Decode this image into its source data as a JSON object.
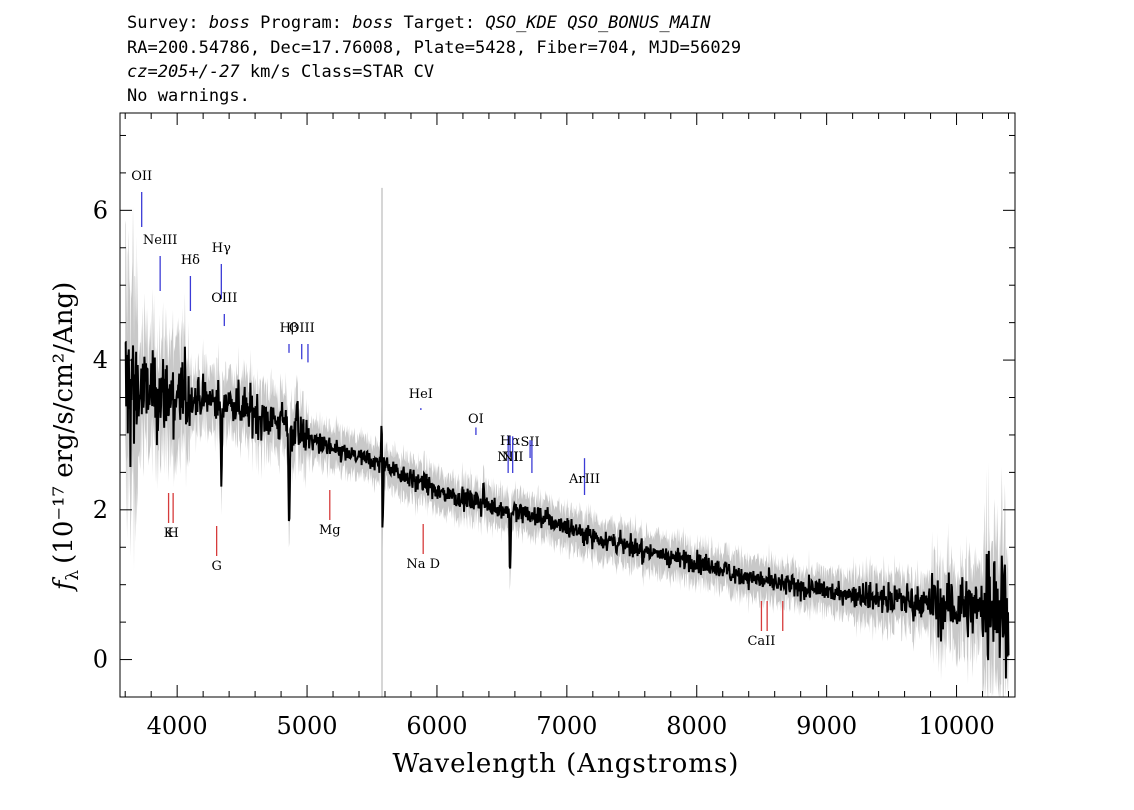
{
  "header": {
    "survey_label": "Survey:",
    "survey": "boss",
    "program_label": "Program:",
    "program": "boss",
    "target_label": "Target:",
    "target": "QSO_KDE QSO_BONUS_MAIN",
    "line2": "RA=200.54786, Dec=17.76008, Plate=5428, Fiber=704, MJD=56029",
    "cz": "cz=205+/-27",
    "cz_unit_class": " km/s Class=STAR CV",
    "warnings": "No warnings."
  },
  "chart_data": {
    "type": "line",
    "xlabel": "Wavelength (Angstroms)",
    "ylabel_prefix": "f",
    "ylabel_sub": "λ",
    "ylabel_units": "(10⁻¹⁷ erg/s/cm²/Ang)",
    "xlim": [
      3560,
      10450
    ],
    "ylim": [
      -0.5,
      7.3
    ],
    "x_ticks": [
      4000,
      5000,
      6000,
      7000,
      8000,
      9000,
      10000
    ],
    "y_ticks": [
      0,
      2,
      4,
      6
    ],
    "colors": {
      "flux": "#000000",
      "error_band": "#c8c8c8",
      "emission": "#3b3bd6",
      "absorption": "#d63b3b"
    },
    "continuum": [
      [
        3600,
        3.6
      ],
      [
        3800,
        3.55
      ],
      [
        4000,
        3.5
      ],
      [
        4400,
        3.45
      ],
      [
        4800,
        3.15
      ],
      [
        5200,
        2.8
      ],
      [
        5600,
        2.6
      ],
      [
        6000,
        2.25
      ],
      [
        6400,
        2.05
      ],
      [
        6800,
        1.9
      ],
      [
        7200,
        1.65
      ],
      [
        7600,
        1.45
      ],
      [
        8000,
        1.3
      ],
      [
        8400,
        1.1
      ],
      [
        8800,
        0.95
      ],
      [
        9200,
        0.88
      ],
      [
        9600,
        0.8
      ],
      [
        10000,
        0.7
      ],
      [
        10400,
        0.75
      ]
    ],
    "features": [
      {
        "x": 4340,
        "depth": 1.3
      },
      {
        "x": 4862,
        "depth": 1.6
      },
      {
        "x": 4925,
        "depth": -0.5
      },
      {
        "x": 5577,
        "depth": -1.9
      },
      {
        "x": 5580,
        "depth": 2.2
      },
      {
        "x": 6563,
        "depth": 0.9
      },
      {
        "x": 6360,
        "depth": -0.3
      }
    ],
    "emission_lines": [
      {
        "label": "OII",
        "x": 3727
      },
      {
        "label": "NeIII",
        "x": 3869
      },
      {
        "label": "Hδ",
        "x": 4102
      },
      {
        "label": "Hγ",
        "x": 4340
      },
      {
        "label": "OIII",
        "x": 4363
      },
      {
        "label": "Hβ",
        "x": 4861
      },
      {
        "label": "OIII",
        "x": 4959
      },
      {
        "label": "",
        "x": 5007
      },
      {
        "label": "HeI",
        "x": 5876
      },
      {
        "label": "OI",
        "x": 6300
      },
      {
        "label": "NII",
        "x": 6548
      },
      {
        "label": "Hα",
        "x": 6563
      },
      {
        "label": "NII",
        "x": 6583
      },
      {
        "label": "SII",
        "x": 6717
      },
      {
        "label": "",
        "x": 6731
      },
      {
        "label": "ArIII",
        "x": 7136
      }
    ],
    "absorption_lines": [
      {
        "label": "K",
        "x": 3934
      },
      {
        "label": "H",
        "x": 3969
      },
      {
        "label": "G",
        "x": 4304
      },
      {
        "label": "Mg",
        "x": 5175
      },
      {
        "label": "Na D",
        "x": 5894
      },
      {
        "label": "CaII",
        "x": 8498
      },
      {
        "label": "",
        "x": 8542
      },
      {
        "label": "",
        "x": 8662
      }
    ]
  }
}
